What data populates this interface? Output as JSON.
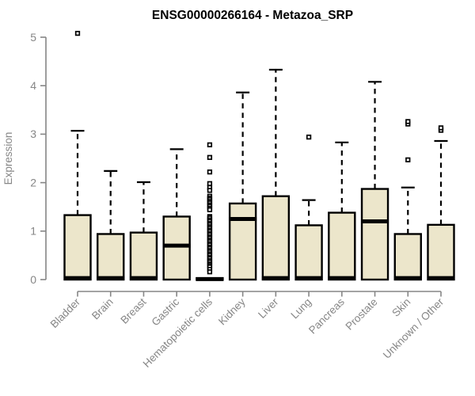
{
  "chart_data": {
    "type": "boxplot",
    "title": "ENSG00000266164 - Metazoa_SRP",
    "ylabel": "Expression",
    "ylim": [
      0,
      5
    ],
    "yticks": [
      0,
      1,
      2,
      3,
      4,
      5
    ],
    "grid": false,
    "legend": false,
    "marker": "open-square",
    "categories": [
      "Bladder",
      "Brain",
      "Breast",
      "Gastric",
      "Hematopoietic cells",
      "Kidney",
      "Liver",
      "Lung",
      "Pancreas",
      "Prostate",
      "Skin",
      "Unknown / Other"
    ],
    "boxes": [
      {
        "category": "Bladder",
        "whisker_low": 0,
        "q1": 0,
        "median": 0.03,
        "q3": 1.33,
        "whisker_high": 3.07,
        "outliers": [
          5.08
        ]
      },
      {
        "category": "Brain",
        "whisker_low": 0,
        "q1": 0,
        "median": 0.03,
        "q3": 0.94,
        "whisker_high": 2.24,
        "outliers": []
      },
      {
        "category": "Breast",
        "whisker_low": 0,
        "q1": 0,
        "median": 0.03,
        "q3": 0.97,
        "whisker_high": 2.01,
        "outliers": []
      },
      {
        "category": "Gastric",
        "whisker_low": 0,
        "q1": 0,
        "median": 0.7,
        "q3": 1.3,
        "whisker_high": 2.69,
        "outliers": []
      },
      {
        "category": "Hematopoietic cells",
        "whisker_low": 0,
        "q1": 0,
        "median": 0.01,
        "q3": 0.03,
        "whisker_high": 0.04,
        "outliers": [
          2.78,
          2.52,
          2.22,
          1.98,
          1.9,
          1.84,
          1.72,
          1.68,
          1.65,
          1.61,
          1.58,
          1.54,
          1.51,
          1.47,
          1.44,
          1.3,
          1.27,
          1.23,
          1.2,
          1.16,
          1.13,
          1.09,
          1.06,
          1.02,
          0.99,
          0.95,
          0.92,
          0.88,
          0.85,
          0.81,
          0.78,
          0.74,
          0.71,
          0.67,
          0.64,
          0.6,
          0.57,
          0.53,
          0.5,
          0.46,
          0.43,
          0.39,
          0.36,
          0.32,
          0.29,
          0.26,
          0.21,
          0.16
        ]
      },
      {
        "category": "Kidney",
        "whisker_low": 0,
        "q1": 0,
        "median": 1.25,
        "q3": 1.57,
        "whisker_high": 3.86,
        "outliers": []
      },
      {
        "category": "Liver",
        "whisker_low": 0,
        "q1": 0,
        "median": 0.03,
        "q3": 1.72,
        "whisker_high": 4.33,
        "outliers": []
      },
      {
        "category": "Lung",
        "whisker_low": 0,
        "q1": 0,
        "median": 0.03,
        "q3": 1.12,
        "whisker_high": 1.64,
        "outliers": [
          2.94
        ]
      },
      {
        "category": "Pancreas",
        "whisker_low": 0,
        "q1": 0,
        "median": 0.03,
        "q3": 1.38,
        "whisker_high": 2.83,
        "outliers": []
      },
      {
        "category": "Prostate",
        "whisker_low": 0,
        "q1": 0,
        "median": 1.2,
        "q3": 1.87,
        "whisker_high": 4.08,
        "outliers": []
      },
      {
        "category": "Skin",
        "whisker_low": 0,
        "q1": 0,
        "median": 0.03,
        "q3": 0.94,
        "whisker_high": 1.9,
        "outliers": [
          3.21,
          3.26,
          2.47
        ]
      },
      {
        "category": "Unknown / Other",
        "whisker_low": 0,
        "q1": 0,
        "median": 0.03,
        "q3": 1.13,
        "whisker_high": 2.86,
        "outliers": [
          3.08,
          3.13
        ]
      }
    ],
    "colors": {
      "box_fill": "#ece6cb",
      "box_stroke": "#000000",
      "median": "#000000",
      "whisker": "#000000",
      "outlier": "#000000",
      "axis": "#868686",
      "tick_label": "#868686",
      "title": "#000000",
      "background": "#ffffff"
    }
  }
}
